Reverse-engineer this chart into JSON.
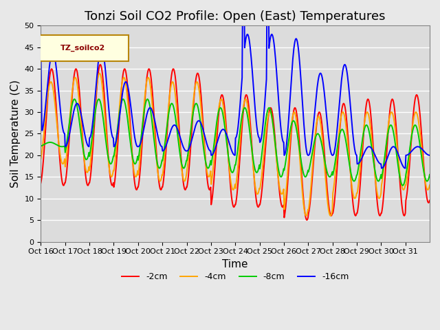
{
  "title": "Tonzi Soil CO2 Profile: Open (East) Temperatures",
  "xlabel": "Time",
  "ylabel": "Soil Temperature (C)",
  "legend_label": "TZ_soilco2",
  "series_labels": [
    "-2cm",
    "-4cm",
    "-8cm",
    "-16cm"
  ],
  "series_colors": [
    "#ff0000",
    "#ffa500",
    "#00cc00",
    "#0000ff"
  ],
  "ylim": [
    0,
    50
  ],
  "yticks": [
    0,
    5,
    10,
    15,
    20,
    25,
    30,
    35,
    40,
    45,
    50
  ],
  "xtick_labels": [
    "Oct 16",
    "Oct 17",
    "Oct 18",
    "Oct 19",
    "Oct 20",
    "Oct 21",
    "Oct 22",
    "Oct 23",
    "Oct 24",
    "Oct 25",
    "Oct 26",
    "Oct 27",
    "Oct 28",
    "Oct 29",
    "Oct 30",
    "Oct 31"
  ],
  "background_color": "#dcdcdc",
  "plot_bg_color": "#dcdcdc",
  "title_fontsize": 13,
  "axis_label_fontsize": 11,
  "tick_fontsize": 8,
  "legend_fontsize": 9,
  "line_width": 1.4
}
